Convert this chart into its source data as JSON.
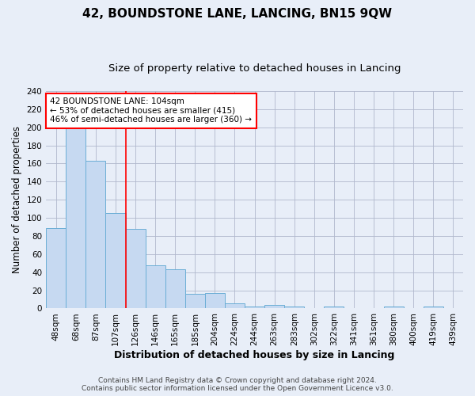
{
  "title": "42, BOUNDSTONE LANE, LANCING, BN15 9QW",
  "subtitle": "Size of property relative to detached houses in Lancing",
  "xlabel": "Distribution of detached houses by size in Lancing",
  "ylabel": "Number of detached properties",
  "categories": [
    "48sqm",
    "68sqm",
    "87sqm",
    "107sqm",
    "126sqm",
    "146sqm",
    "165sqm",
    "185sqm",
    "204sqm",
    "224sqm",
    "244sqm",
    "263sqm",
    "283sqm",
    "302sqm",
    "322sqm",
    "341sqm",
    "361sqm",
    "380sqm",
    "400sqm",
    "419sqm",
    "439sqm"
  ],
  "values": [
    89,
    200,
    163,
    105,
    88,
    48,
    43,
    16,
    17,
    6,
    2,
    4,
    2,
    0,
    2,
    0,
    0,
    2,
    0,
    2,
    0
  ],
  "bar_color": "#c6d9f1",
  "bar_edge_color": "#6baed6",
  "grid_color": "#b0b8cc",
  "background_color": "#e8eef8",
  "vline_x": 3.5,
  "vline_color": "red",
  "annotation_text": "42 BOUNDSTONE LANE: 104sqm\n← 53% of detached houses are smaller (415)\n46% of semi-detached houses are larger (360) →",
  "annotation_box_color": "white",
  "annotation_box_edge": "red",
  "ylim": [
    0,
    240
  ],
  "yticks": [
    0,
    20,
    40,
    60,
    80,
    100,
    120,
    140,
    160,
    180,
    200,
    220,
    240
  ],
  "footer_line1": "Contains HM Land Registry data © Crown copyright and database right 2024.",
  "footer_line2": "Contains public sector information licensed under the Open Government Licence v3.0.",
  "title_fontsize": 11,
  "subtitle_fontsize": 9.5,
  "xlabel_fontsize": 9,
  "ylabel_fontsize": 8.5,
  "tick_fontsize": 7.5,
  "footer_fontsize": 6.5,
  "annotation_fontsize": 7.5
}
